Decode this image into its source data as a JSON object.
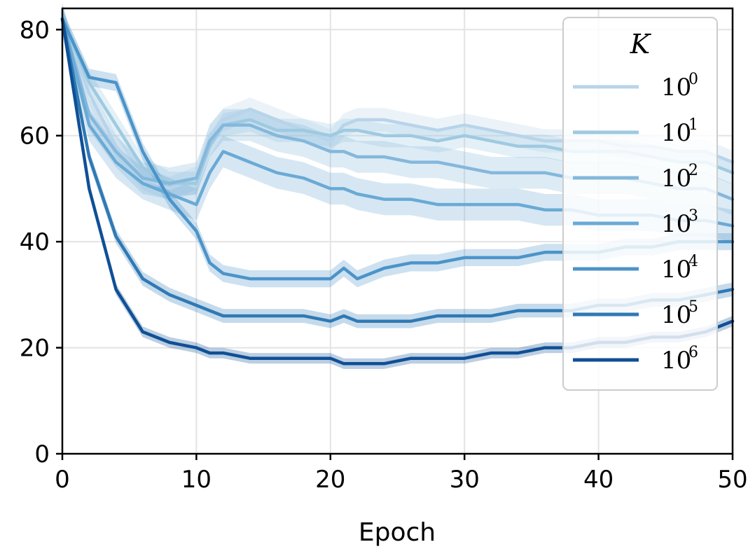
{
  "chart_data": {
    "type": "line",
    "xlabel": "Epoch",
    "ylabel": "",
    "xlim": [
      0,
      50
    ],
    "ylim": [
      0,
      84
    ],
    "xticks": [
      0,
      10,
      20,
      30,
      40,
      50
    ],
    "yticks": [
      0,
      20,
      40,
      60,
      80
    ],
    "grid": true,
    "legend": {
      "title": "K",
      "placement": "upper-right",
      "entries": [
        {
          "base": "10",
          "exp": "0"
        },
        {
          "base": "10",
          "exp": "1"
        },
        {
          "base": "10",
          "exp": "2"
        },
        {
          "base": "10",
          "exp": "3"
        },
        {
          "base": "10",
          "exp": "4"
        },
        {
          "base": "10",
          "exp": "5"
        },
        {
          "base": "10",
          "exp": "6"
        }
      ]
    },
    "x": [
      0,
      2,
      4,
      6,
      8,
      10,
      11,
      12,
      14,
      16,
      18,
      20,
      21,
      22,
      24,
      26,
      28,
      30,
      32,
      34,
      36,
      38,
      40,
      42,
      44,
      46,
      48,
      50
    ],
    "series": [
      {
        "name": "10^0",
        "color": "#b8d4ea",
        "band": 2.2,
        "values": [
          82,
          68,
          58,
          52,
          50,
          52,
          60,
          63,
          65,
          63,
          61,
          59,
          62,
          63,
          63,
          62,
          61,
          62,
          61,
          60,
          59,
          59,
          59,
          58,
          58,
          57,
          57,
          55
        ]
      },
      {
        "name": "10^1",
        "color": "#9ecae1",
        "band": 2.2,
        "values": [
          82,
          70,
          62,
          54,
          51,
          51,
          58,
          62,
          63,
          61,
          61,
          60,
          61,
          61,
          60,
          60,
          59,
          60,
          59,
          58,
          58,
          57,
          57,
          57,
          56,
          55,
          55,
          53
        ]
      },
      {
        "name": "10^2",
        "color": "#84b8dc",
        "band": 3.0,
        "values": [
          82,
          64,
          57,
          52,
          51,
          52,
          59,
          62,
          62,
          60,
          59,
          57,
          57,
          56,
          56,
          55,
          55,
          54,
          53,
          53,
          53,
          52,
          52,
          52,
          51,
          50,
          50,
          48
        ]
      },
      {
        "name": "10^3",
        "color": "#6aaad5",
        "band": 3.0,
        "values": [
          82,
          62,
          55,
          51,
          49,
          47,
          53,
          57,
          55,
          53,
          52,
          50,
          50,
          49,
          48,
          48,
          47,
          47,
          47,
          47,
          46,
          46,
          45,
          45,
          45,
          44,
          44,
          43
        ]
      },
      {
        "name": "10^4",
        "color": "#4c94c9",
        "band": 1.6,
        "values": [
          82,
          71,
          70,
          57,
          48,
          42,
          36,
          34,
          33,
          33,
          33,
          33,
          35,
          33,
          35,
          36,
          36,
          37,
          37,
          37,
          38,
          38,
          38,
          39,
          39,
          40,
          40,
          40
        ]
      },
      {
        "name": "10^5",
        "color": "#2f79b5",
        "band": 1.3,
        "values": [
          82,
          56,
          41,
          33,
          30,
          28,
          27,
          26,
          26,
          26,
          26,
          25,
          26,
          25,
          25,
          25,
          26,
          26,
          26,
          27,
          27,
          27,
          28,
          28,
          29,
          29,
          30,
          31
        ]
      },
      {
        "name": "10^6",
        "color": "#0f5096",
        "band": 1.0,
        "values": [
          82,
          50,
          31,
          23,
          21,
          20,
          19,
          19,
          18,
          18,
          18,
          18,
          17,
          17,
          17,
          18,
          18,
          18,
          19,
          19,
          20,
          20,
          21,
          21,
          22,
          22,
          23,
          25
        ]
      }
    ]
  }
}
